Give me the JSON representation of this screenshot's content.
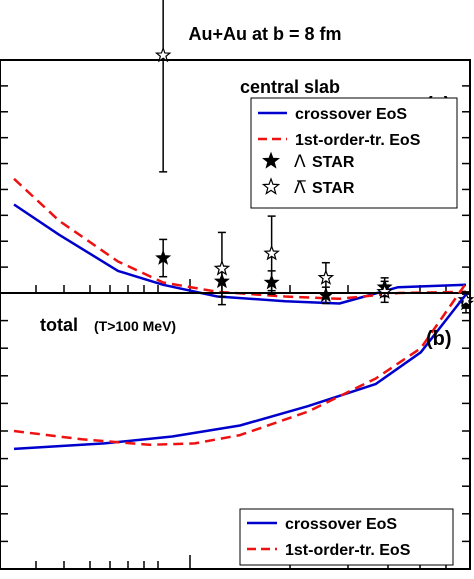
{
  "figure_title": "Au+Au at b = 8 fm",
  "colors": {
    "crossover": "#0000cc",
    "first_order": "#ee1111",
    "data": "#000000"
  },
  "chart_data": [
    {
      "type": "line",
      "panel_label": "(a)",
      "title": "central slab",
      "xlabel": "",
      "ylabel": "",
      "xlim": [
        0,
        10
      ],
      "ylim": [
        0,
        10
      ],
      "grid": false,
      "legend_position": "top-right",
      "series": [
        {
          "name": "crossover EoS",
          "style": "solid",
          "color": "#0000cc",
          "x": [
            0,
            1,
            2.3,
            3.3,
            4.5,
            6.0,
            7.2,
            8.5,
            10
          ],
          "y": [
            3.8,
            2.5,
            0.95,
            0.35,
            -0.15,
            -0.35,
            -0.45,
            0.25,
            0.35
          ]
        },
        {
          "name": "1st-order-tr. EoS",
          "style": "dashed",
          "color": "#ee1111",
          "x": [
            0,
            1,
            2.3,
            3.3,
            4.5,
            6.0,
            7.2,
            8.5,
            10
          ],
          "y": [
            4.9,
            3.1,
            1.35,
            0.45,
            0.05,
            -0.15,
            -0.25,
            0.0,
            0.05
          ]
        },
        {
          "name": "Λ STAR",
          "marker": "filled-star",
          "color": "#000000",
          "x": [
            3.3,
            4.6,
            5.7,
            6.9,
            8.2,
            10
          ],
          "y": [
            1.5,
            0.5,
            0.45,
            -0.1,
            0.25,
            -0.45
          ],
          "err": [
            0.8,
            0.65,
            0.5,
            0.35,
            0.4,
            0.4
          ]
        },
        {
          "name": "Λ̅ STAR",
          "marker": "open-star",
          "color": "#000000",
          "x": [
            3.3,
            4.6,
            5.7,
            6.9,
            8.2,
            10
          ],
          "y": [
            10.2,
            1.05,
            1.7,
            0.65,
            0.05,
            -0.3
          ],
          "err": [
            5.0,
            1.55,
            1.6,
            0.65,
            0.45,
            0.35
          ]
        }
      ],
      "legend_labels": [
        "crossover EoS",
        "1st-order-tr. EoS",
        "STAR",
        "STAR"
      ],
      "legend_symbols": [
        "Λ",
        "Λ̅"
      ]
    },
    {
      "type": "line",
      "panel_label": "(b)",
      "title": "total",
      "subtitle": "(T>100 MeV)",
      "xlabel": "",
      "ylabel": "",
      "xlim": [
        0,
        10
      ],
      "ylim": [
        0,
        10
      ],
      "grid": false,
      "legend_position": "bottom-right",
      "series": [
        {
          "name": "crossover EoS",
          "style": "solid",
          "color": "#0000cc",
          "x": [
            0,
            2,
            3.5,
            5,
            6.5,
            8,
            9,
            10
          ],
          "y": [
            4.35,
            4.55,
            4.8,
            5.2,
            5.9,
            6.7,
            7.85,
            9.95
          ]
        },
        {
          "name": "1st-order-tr. EoS",
          "style": "dashed",
          "color": "#ee1111",
          "x": [
            0,
            1.5,
            3,
            4,
            5,
            6.5,
            8,
            9,
            10
          ],
          "y": [
            5.0,
            4.7,
            4.5,
            4.55,
            4.85,
            5.7,
            6.9,
            8.0,
            10.35
          ]
        }
      ],
      "legend_labels": [
        "crossover EoS",
        "1st-order-tr. EoS"
      ]
    }
  ]
}
